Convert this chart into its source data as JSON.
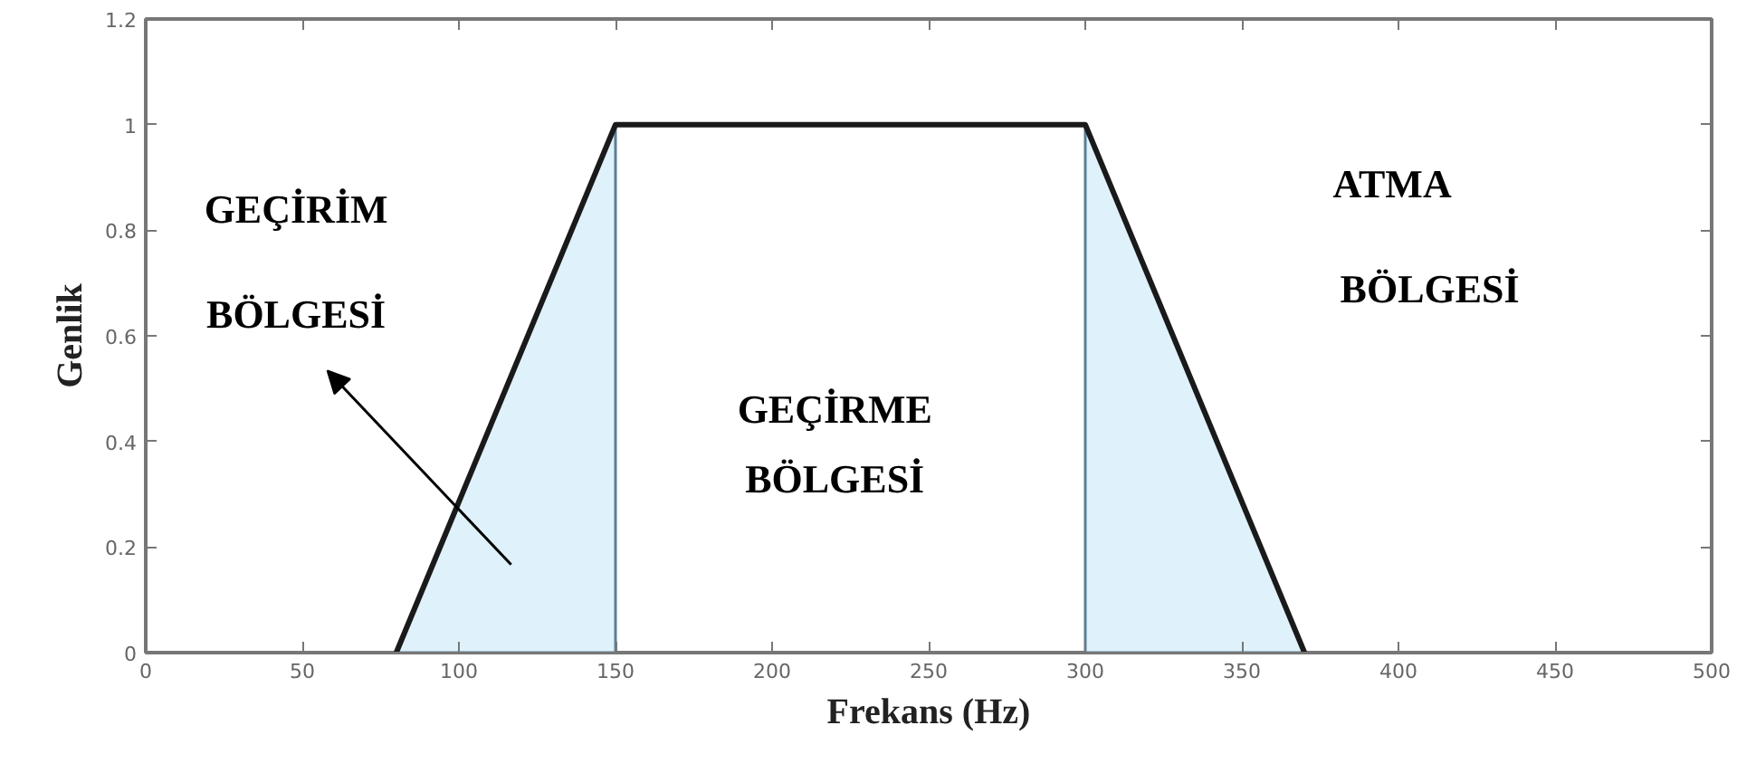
{
  "chart_data": {
    "type": "line",
    "xlabel": "Frekans (Hz)",
    "ylabel": "Genlik",
    "xlim": [
      0,
      500
    ],
    "ylim": [
      0,
      1.2
    ],
    "xticks": [
      0,
      50,
      100,
      150,
      200,
      250,
      300,
      350,
      400,
      450,
      500
    ],
    "yticks": [
      0,
      0.2,
      0.4,
      0.6,
      0.8,
      1,
      1.2
    ],
    "grid": false,
    "marker": "none",
    "line_style": "solid",
    "series": [
      {
        "type": "area",
        "color": "#dff1fb",
        "x": [
          80,
          150
        ],
        "values": [
          0,
          1
        ]
      },
      {
        "type": "area",
        "color": "#dff1fb",
        "x": [
          300,
          370
        ],
        "values": [
          1,
          0
        ]
      },
      {
        "color": "#1a1a1a",
        "x": [
          80,
          150,
          300,
          370
        ],
        "values": [
          0,
          1,
          1,
          0
        ]
      }
    ],
    "annotations": [
      "GEÇİRİM",
      "BÖLGESİ",
      "GEÇİRME",
      "BÖLGESİ",
      "ATMA",
      "BÖLGESİ"
    ]
  }
}
